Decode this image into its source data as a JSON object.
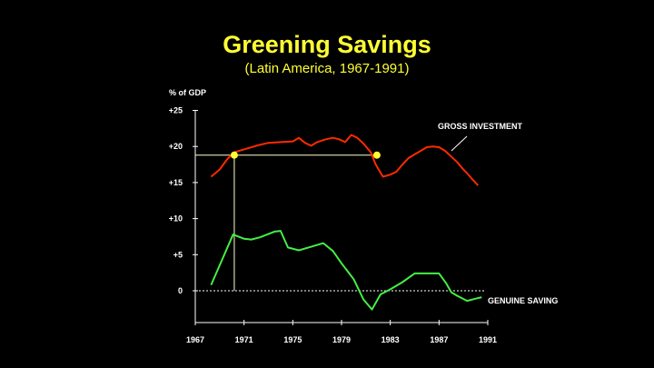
{
  "chart_data": {
    "type": "line",
    "title": "Greening Savings",
    "subtitle": "(Latin America, 1967-1991)",
    "ylabel": "% of GDP",
    "xlim": [
      1967,
      1991
    ],
    "ylim": [
      -4.5,
      25
    ],
    "x_ticks": [
      1967,
      1971,
      1975,
      1979,
      1983,
      1987,
      1991
    ],
    "x_tick_labels": [
      "1967",
      "1971",
      "1975",
      "1979",
      "1983",
      "1987",
      "1991"
    ],
    "y_ticks": [
      25,
      20,
      15,
      10,
      5,
      0
    ],
    "y_tick_labels": [
      "+25",
      "+20",
      "+15",
      "+10",
      "+5",
      "0"
    ],
    "zero_line": "dotted",
    "series": [
      {
        "name": "GROSS INVESTMENT",
        "color": "#ff2a00",
        "x": [
          1968.3,
          1969.0,
          1969.6,
          1970.2,
          1971.0,
          1972.0,
          1973.0,
          1974.0,
          1975.0,
          1975.5,
          1976.0,
          1976.5,
          1977.0,
          1977.7,
          1978.3,
          1978.8,
          1979.3,
          1979.8,
          1980.3,
          1980.8,
          1981.4,
          1981.8,
          1982.4,
          1983.0,
          1983.5,
          1984.0,
          1984.5,
          1985.0,
          1985.5,
          1986.0,
          1986.5,
          1987.0,
          1987.5,
          1988.0,
          1988.5,
          1989.0,
          1989.3,
          1989.7,
          1990.2
        ],
        "values": [
          15.8,
          16.8,
          18.2,
          19.2,
          19.6,
          20.1,
          20.5,
          20.6,
          20.7,
          21.2,
          20.5,
          20.1,
          20.6,
          21.0,
          21.2,
          21.0,
          20.6,
          21.6,
          21.2,
          20.4,
          19.2,
          17.5,
          15.8,
          16.1,
          16.5,
          17.5,
          18.4,
          18.9,
          19.4,
          19.9,
          20.0,
          19.9,
          19.4,
          18.6,
          17.8,
          16.8,
          16.3,
          15.5,
          14.6
        ]
      },
      {
        "name": "GENUINE SAVING",
        "color": "#44ee44",
        "x": [
          1968.3,
          1970.1,
          1971.0,
          1971.6,
          1972.3,
          1973.5,
          1974.0,
          1974.6,
          1975.5,
          1976.5,
          1977.5,
          1978.3,
          1979.0,
          1980.0,
          1980.8,
          1981.5,
          1982.2,
          1983.0,
          1984.0,
          1985.0,
          1986.0,
          1987.0,
          1987.6,
          1988.0,
          1988.5,
          1989.3,
          1990.0,
          1990.5
        ],
        "values": [
          0.8,
          7.8,
          7.2,
          7.1,
          7.4,
          8.2,
          8.3,
          6.0,
          5.6,
          6.1,
          6.6,
          5.5,
          3.8,
          1.6,
          -1.2,
          -2.6,
          -0.5,
          0.2,
          1.2,
          2.4,
          2.4,
          2.4,
          1.0,
          -0.2,
          -0.7,
          -1.4,
          -1.1,
          -0.9
        ]
      }
    ],
    "annotations": {
      "gross_label": "GROSS INVESTMENT",
      "genuine_label": "GENUINE SAVING",
      "reference_line": {
        "y": 18.8,
        "x_start": 1967,
        "x_end": 1981.9
      },
      "markers": [
        {
          "x": 1970.2,
          "y": 18.8
        },
        {
          "x": 1981.9,
          "y": 18.8
        }
      ],
      "drop_line": {
        "x": 1970.2,
        "y_from": 0,
        "y_to": 18.8
      },
      "marker_color": "#ffff33",
      "guide_color": "#ffffcc"
    }
  }
}
